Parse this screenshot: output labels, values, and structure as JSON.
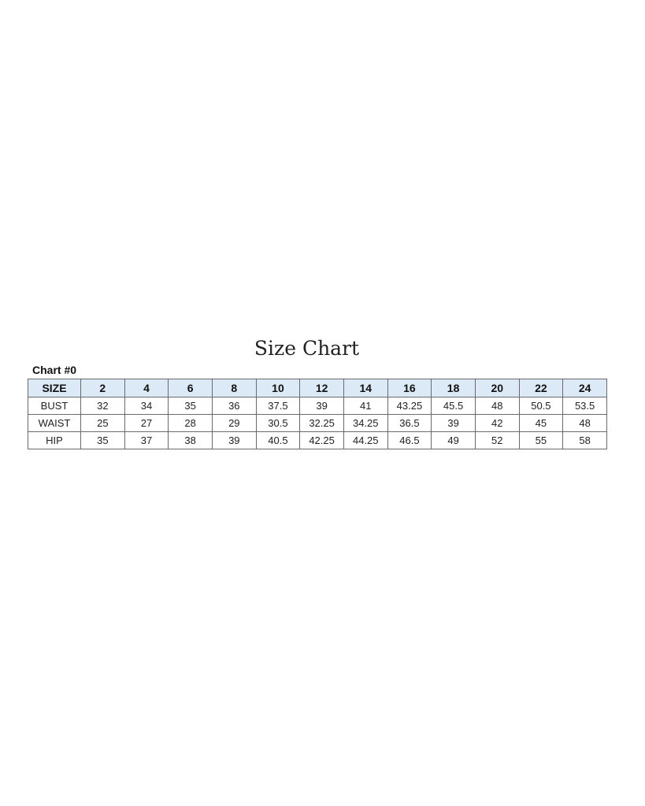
{
  "title": "Size Chart",
  "subtitle": "Chart #0",
  "chart_data": {
    "type": "table",
    "header_color": "#dce9f7",
    "columns": [
      "SIZE",
      "2",
      "4",
      "6",
      "8",
      "10",
      "12",
      "14",
      "16",
      "18",
      "20",
      "22",
      "24"
    ],
    "rows": [
      {
        "label": "BUST",
        "values": [
          "32",
          "34",
          "35",
          "36",
          "37.5",
          "39",
          "41",
          "43.25",
          "45.5",
          "48",
          "50.5",
          "53.5"
        ]
      },
      {
        "label": "WAIST",
        "values": [
          "25",
          "27",
          "28",
          "29",
          "30.5",
          "32.25",
          "34.25",
          "36.5",
          "39",
          "42",
          "45",
          "48"
        ]
      },
      {
        "label": "HIP",
        "values": [
          "35",
          "37",
          "38",
          "39",
          "40.5",
          "42.25",
          "44.25",
          "46.5",
          "49",
          "52",
          "55",
          "58"
        ]
      }
    ]
  }
}
